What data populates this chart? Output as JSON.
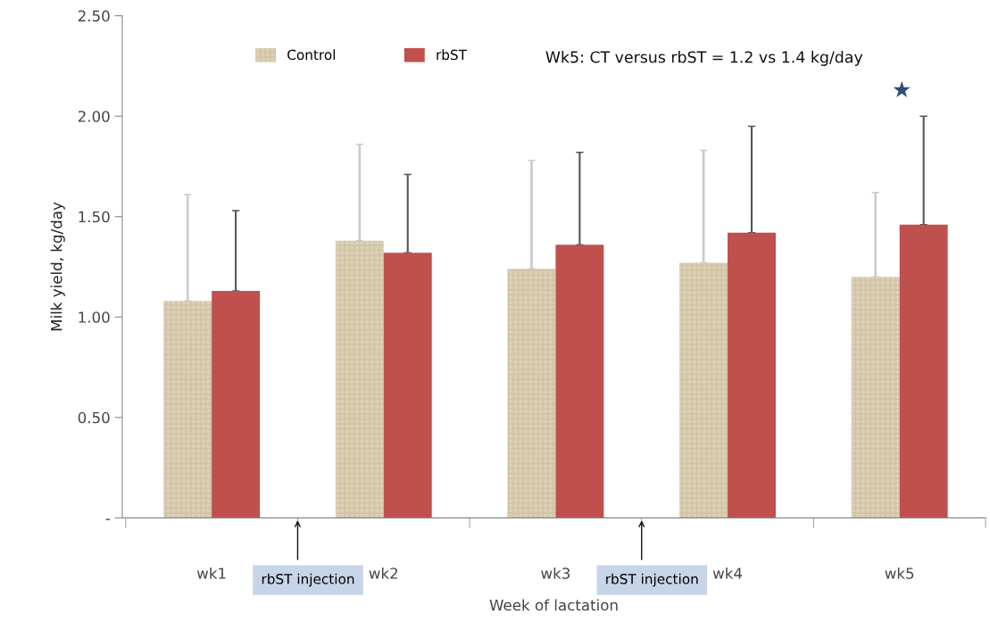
{
  "chart_data": {
    "type": "bar",
    "xlabel": "Week of lactation",
    "ylabel": "Milk yield, kg/day",
    "categories": [
      "wk1",
      "wk2",
      "wk3",
      "wk4",
      "wk5"
    ],
    "series": [
      {
        "name": "Control",
        "color": "#ddd0b4",
        "values": [
          1.08,
          1.38,
          1.24,
          1.27,
          1.2
        ],
        "errors": [
          [
            1.08,
            1.61
          ],
          [
            1.38,
            1.86
          ],
          [
            1.24,
            1.78
          ],
          [
            1.27,
            1.83
          ],
          [
            1.2,
            1.62
          ]
        ]
      },
      {
        "name": "rbST",
        "color": "#c0504d",
        "values": [
          1.13,
          1.32,
          1.36,
          1.42,
          1.46
        ],
        "errors": [
          [
            1.13,
            1.53
          ],
          [
            1.32,
            1.71
          ],
          [
            1.36,
            1.82
          ],
          [
            1.42,
            1.95
          ],
          [
            1.46,
            2.0
          ]
        ]
      }
    ],
    "ylim": [
      0,
      2.5
    ],
    "yticks": [
      {
        "value": 0,
        "label": "-"
      },
      {
        "value": 0.5,
        "label": "0.50"
      },
      {
        "value": 1.0,
        "label": "1.00"
      },
      {
        "value": 1.5,
        "label": "1.50"
      },
      {
        "value": 2.0,
        "label": "2.00"
      },
      {
        "value": 2.5,
        "label": "2.50"
      }
    ],
    "grid": false,
    "legend": "top left",
    "annotations": [
      "Wk5: CT versus rbST = 1.2 vs 1.4 kg/day",
      "rbST injection",
      "rbST injection",
      "★"
    ]
  }
}
